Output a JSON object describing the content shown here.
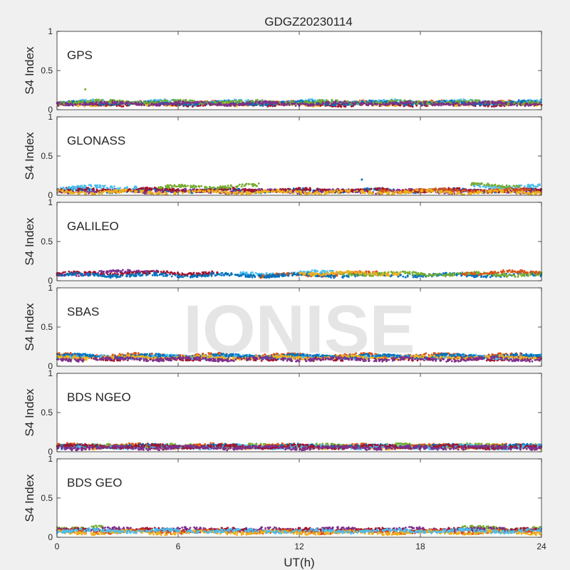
{
  "chart_data": {
    "type": "scatter",
    "title": "GDGZ20230114",
    "xlabel": "UT(h)",
    "ylabel": "S4 Index",
    "xlim": [
      0,
      24
    ],
    "ylim": [
      0,
      1
    ],
    "x_ticks": [
      "0",
      "6",
      "12",
      "18",
      "24"
    ],
    "y_ticks": [
      "0",
      "0.5",
      "1"
    ],
    "grid": false,
    "watermark": "IONISE",
    "series_colors": [
      "#0072BD",
      "#D95319",
      "#EDB120",
      "#7E2F8E",
      "#77AC30",
      "#4DBEEE",
      "#A2142F"
    ],
    "panels": [
      {
        "label": "GPS",
        "baseline_s4": 0.08,
        "s4_range": [
          0.02,
          0.26
        ],
        "segments": [
          {
            "color": 1,
            "x": [
              0,
              24
            ],
            "y": [
              0.08,
              0.09
            ]
          },
          {
            "color": 2,
            "x": [
              0,
              24
            ],
            "y": [
              0.07,
              0.08
            ]
          },
          {
            "color": 6,
            "x": [
              0,
              24
            ],
            "y": [
              0.07,
              0.07
            ]
          },
          {
            "color": 5,
            "x": [
              0,
              24
            ],
            "y": [
              0.1,
              0.1
            ]
          },
          {
            "color": 0,
            "x": [
              0,
              24
            ],
            "y": [
              0.08,
              0.09
            ]
          },
          {
            "color": 4,
            "x": [
              0,
              24
            ],
            "y": [
              0.1,
              0.09
            ]
          },
          {
            "color": 3,
            "x": [
              0,
              24
            ],
            "y": [
              0.08,
              0.08
            ]
          }
        ],
        "outliers": [
          {
            "x": 1.4,
            "y": 0.26,
            "color": 4
          }
        ]
      },
      {
        "label": "GLONASS",
        "baseline_s4": 0.07,
        "s4_range": [
          0.02,
          0.2
        ],
        "segments": [
          {
            "color": 0,
            "x": [
              0,
              24
            ],
            "y": [
              0.06,
              0.06
            ]
          },
          {
            "color": 3,
            "x": [
              0,
              24
            ],
            "y": [
              0.05,
              0.05
            ]
          },
          {
            "color": 6,
            "x": [
              0,
              24
            ],
            "y": [
              0.07,
              0.06
            ]
          },
          {
            "color": 4,
            "x": [
              5,
              10
            ],
            "y": [
              0.1,
              0.12
            ]
          },
          {
            "color": 5,
            "x": [
              0,
              4
            ],
            "y": [
              0.09,
              0.11
            ]
          },
          {
            "color": 5,
            "x": [
              20.5,
              24
            ],
            "y": [
              0.12,
              0.11
            ]
          },
          {
            "color": 4,
            "x": [
              20.5,
              23
            ],
            "y": [
              0.13,
              0.12
            ]
          },
          {
            "color": 1,
            "x": [
              16,
              24
            ],
            "y": [
              0.06,
              0.06
            ]
          },
          {
            "color": 2,
            "x": [
              0,
              24
            ],
            "y": [
              0.04,
              0.04
            ]
          }
        ],
        "outliers": [
          {
            "x": 15.1,
            "y": 0.2,
            "color": 0
          }
        ]
      },
      {
        "label": "GALILEO",
        "baseline_s4": 0.08,
        "s4_range": [
          0.03,
          0.16
        ],
        "segments": [
          {
            "color": 3,
            "x": [
              0,
              5
            ],
            "y": [
              0.08,
              0.13
            ]
          },
          {
            "color": 6,
            "x": [
              0,
              8
            ],
            "y": [
              0.09,
              0.1
            ]
          },
          {
            "color": 5,
            "x": [
              9,
              14
            ],
            "y": [
              0.08,
              0.11
            ]
          },
          {
            "color": 1,
            "x": [
              10,
              16
            ],
            "y": [
              0.06,
              0.1
            ]
          },
          {
            "color": 0,
            "x": [
              0,
              24
            ],
            "y": [
              0.07,
              0.07
            ]
          },
          {
            "color": 4,
            "x": [
              14,
              24
            ],
            "y": [
              0.09,
              0.08
            ]
          },
          {
            "color": 1,
            "x": [
              20,
              24
            ],
            "y": [
              0.1,
              0.11
            ]
          },
          {
            "color": 2,
            "x": [
              12,
              17
            ],
            "y": [
              0.1,
              0.09
            ]
          }
        ],
        "outliers": []
      },
      {
        "label": "SBAS",
        "baseline_s4": 0.12,
        "s4_range": [
          0.06,
          0.2
        ],
        "segments": [
          {
            "color": 6,
            "x": [
              0,
              24
            ],
            "y": [
              0.1,
              0.1
            ]
          },
          {
            "color": 1,
            "x": [
              0,
              24
            ],
            "y": [
              0.14,
              0.14
            ]
          },
          {
            "color": 5,
            "x": [
              0,
              24
            ],
            "y": [
              0.12,
              0.12
            ]
          },
          {
            "color": 0,
            "x": [
              0,
              24
            ],
            "y": [
              0.13,
              0.13
            ]
          },
          {
            "color": 2,
            "x": [
              0,
              24
            ],
            "y": [
              0.11,
              0.11
            ]
          },
          {
            "color": 3,
            "x": [
              0,
              24
            ],
            "y": [
              0.09,
              0.09
            ]
          }
        ],
        "outliers": []
      },
      {
        "label": "BDS NGEO",
        "baseline_s4": 0.07,
        "s4_range": [
          0.03,
          0.14
        ],
        "segments": [
          {
            "color": 2,
            "x": [
              0,
              24
            ],
            "y": [
              0.06,
              0.06
            ]
          },
          {
            "color": 4,
            "x": [
              0,
              24
            ],
            "y": [
              0.07,
              0.08
            ]
          },
          {
            "color": 1,
            "x": [
              0,
              24
            ],
            "y": [
              0.08,
              0.07
            ]
          },
          {
            "color": 0,
            "x": [
              0,
              24
            ],
            "y": [
              0.07,
              0.07
            ]
          },
          {
            "color": 5,
            "x": [
              0,
              24
            ],
            "y": [
              0.06,
              0.06
            ]
          },
          {
            "color": 6,
            "x": [
              0,
              24
            ],
            "y": [
              0.07,
              0.06
            ]
          },
          {
            "color": 3,
            "x": [
              0,
              24
            ],
            "y": [
              0.05,
              0.05
            ]
          }
        ],
        "outliers": []
      },
      {
        "label": "BDS GEO",
        "baseline_s4": 0.09,
        "s4_range": [
          0.04,
          0.15
        ],
        "segments": [
          {
            "color": 4,
            "x": [
              0,
              2.3
            ],
            "y": [
              0.12,
              0.12
            ]
          },
          {
            "color": 4,
            "x": [
              20,
              24
            ],
            "y": [
              0.12,
              0.11
            ]
          },
          {
            "color": 3,
            "x": [
              0,
              24
            ],
            "y": [
              0.1,
              0.1
            ]
          },
          {
            "color": 6,
            "x": [
              0,
              24
            ],
            "y": [
              0.09,
              0.09
            ]
          },
          {
            "color": 1,
            "x": [
              0,
              24
            ],
            "y": [
              0.07,
              0.07
            ]
          },
          {
            "color": 2,
            "x": [
              0,
              24
            ],
            "y": [
              0.06,
              0.06
            ]
          },
          {
            "color": 5,
            "x": [
              0,
              24
            ],
            "y": [
              0.08,
              0.08
            ]
          }
        ],
        "outliers": []
      }
    ]
  }
}
